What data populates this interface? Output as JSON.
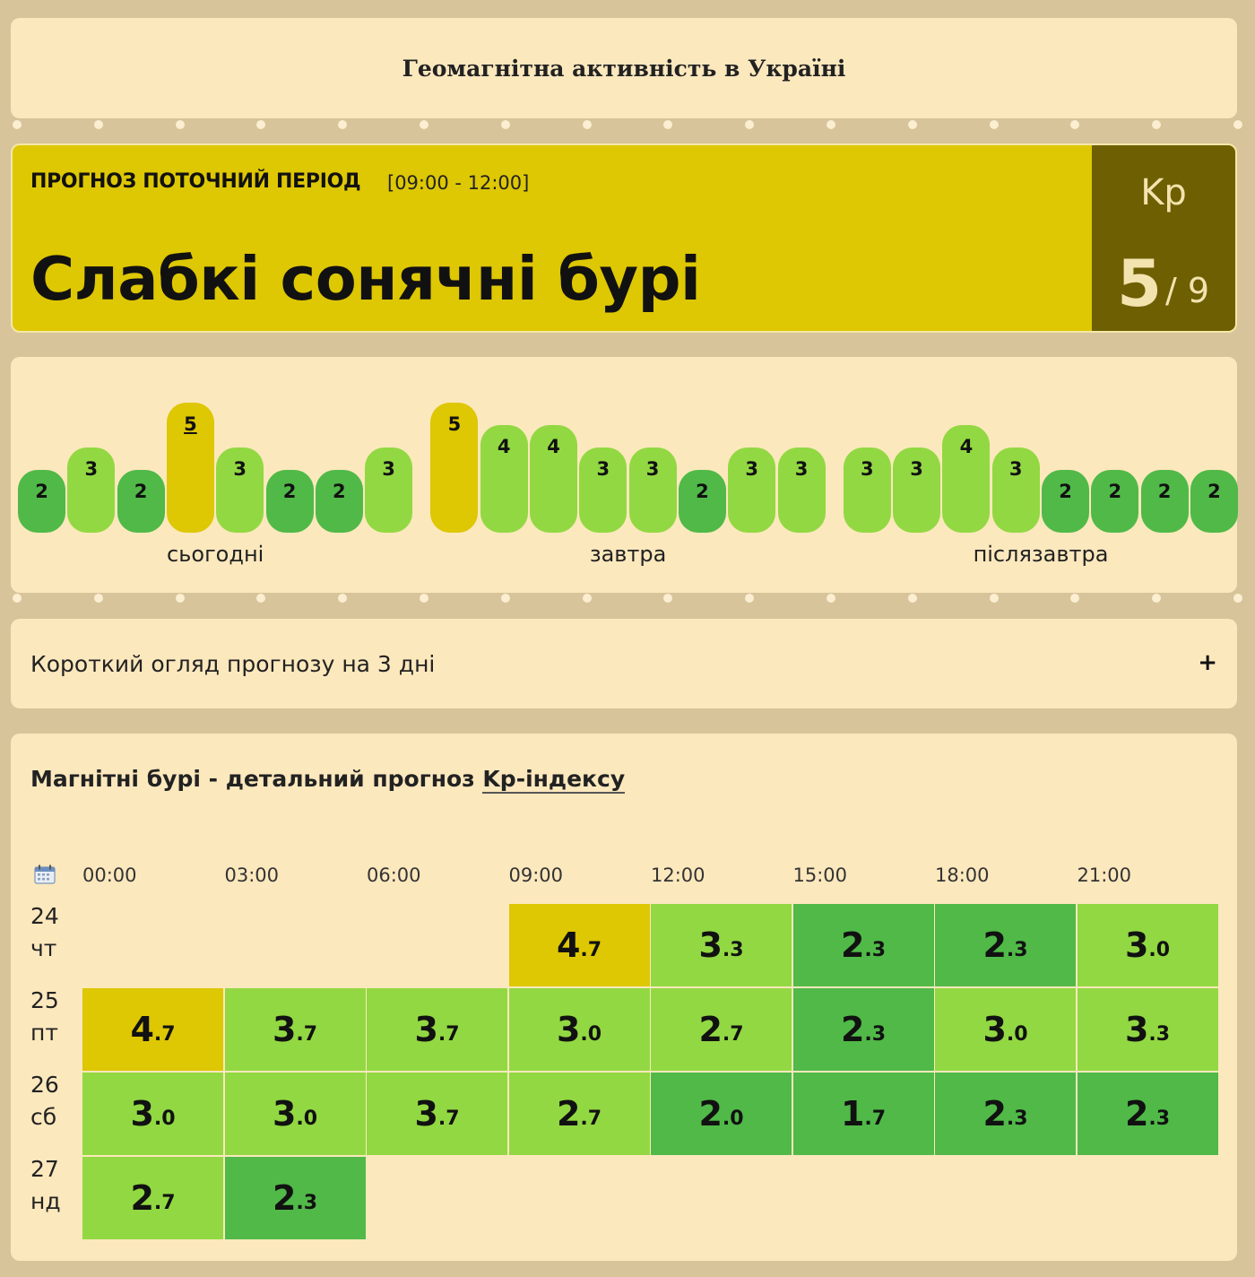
{
  "header": {
    "title": "Геомагнітна активність в Україні"
  },
  "current": {
    "label": "ПРОГНОЗ ПОТОЧНИЙ ПЕРІОД",
    "period": "[09:00 - 12:00]",
    "status": "Слабкі сонячні бурі",
    "kp_label": "Kp",
    "kp_value": "5",
    "kp_max": "/ 9"
  },
  "bars": {
    "days": [
      "сьогодні",
      "завтра",
      "післязавтра"
    ],
    "values": [
      [
        2,
        3,
        2,
        5,
        3,
        2,
        2,
        3
      ],
      [
        5,
        4,
        4,
        3,
        3,
        2,
        3,
        3
      ],
      [
        3,
        3,
        4,
        3,
        2,
        2,
        2,
        2
      ]
    ],
    "selected": [
      0,
      3
    ]
  },
  "overview": {
    "label": "Короткий огляд прогнозу на 3 дні",
    "toggle": "+"
  },
  "detail": {
    "title_prefix": "Магнітні бурі - детальний прогноз ",
    "title_link": "Kp-індексу",
    "hours": [
      "00:00",
      "03:00",
      "06:00",
      "09:00",
      "12:00",
      "15:00",
      "18:00",
      "21:00"
    ],
    "rows": [
      {
        "day": "24",
        "weekday": "чт",
        "values": [
          null,
          null,
          null,
          "4.7",
          "3.3",
          "2.3",
          "2.3",
          "3.0"
        ]
      },
      {
        "day": "25",
        "weekday": "пт",
        "values": [
          "4.7",
          "3.7",
          "3.7",
          "3.0",
          "2.7",
          "2.3",
          "3.0",
          "3.3"
        ]
      },
      {
        "day": "26",
        "weekday": "сб",
        "values": [
          "3.0",
          "3.0",
          "3.7",
          "2.7",
          "2.0",
          "1.7",
          "2.3",
          "2.3"
        ]
      },
      {
        "day": "27",
        "weekday": "нд",
        "values": [
          "2.7",
          "2.3",
          null,
          null,
          null,
          null,
          null,
          null
        ]
      }
    ]
  },
  "colors": {
    "level2": "#50b948",
    "level3": "#92d842",
    "level4": "#92d842",
    "level5": "#dec703",
    "card": "#fce8bd",
    "background": "#d8c49a",
    "kp_box": "#6e5f02"
  }
}
